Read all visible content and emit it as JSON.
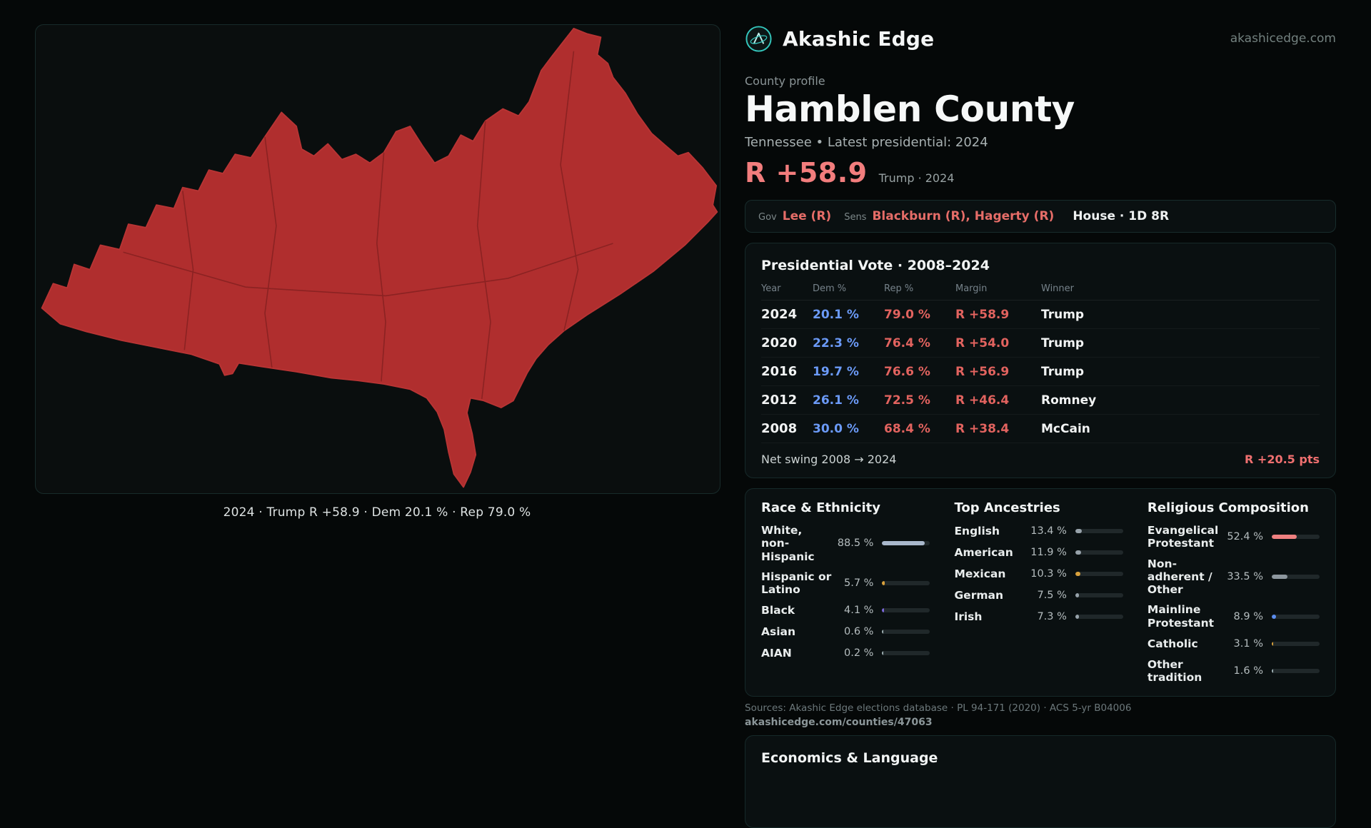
{
  "brand": {
    "name": "Akashic Edge",
    "domain": "akashicedge.com",
    "accent_teal": "#34c7bd"
  },
  "map": {
    "caption": "2024 · Trump R +58.9 · Dem 20.1 % · Rep 79.0 %",
    "fill": "#b02e2e"
  },
  "profile": {
    "eyebrow": "County profile",
    "title": "Hamblen County",
    "subtitle": "Tennessee • Latest presidential: 2024",
    "headline_margin": "R +58.9",
    "headline_context": "Trump · 2024",
    "accent_red": "#e2635f",
    "accent_blue": "#6b9af7"
  },
  "officials": {
    "gov_label": "Gov",
    "gov_value": "Lee (R)",
    "sens_label": "Sens",
    "sens_value": "Blackburn (R), Hagerty (R)",
    "house_value": "House · 1D 8R"
  },
  "presidential": {
    "title": "Presidential Vote · 2008–2024",
    "columns": [
      "Year",
      "Dem %",
      "Rep %",
      "Margin",
      "Winner"
    ],
    "rows": [
      {
        "year": "2024",
        "dem": "20.1 %",
        "rep": "79.0 %",
        "margin": "R +58.9",
        "winner": "Trump"
      },
      {
        "year": "2020",
        "dem": "22.3 %",
        "rep": "76.4 %",
        "margin": "R +54.0",
        "winner": "Trump"
      },
      {
        "year": "2016",
        "dem": "19.7 %",
        "rep": "76.6 %",
        "margin": "R +56.9",
        "winner": "Trump"
      },
      {
        "year": "2012",
        "dem": "26.1 %",
        "rep": "72.5 %",
        "margin": "R +46.4",
        "winner": "Romney"
      },
      {
        "year": "2008",
        "dem": "30.0 %",
        "rep": "68.4 %",
        "margin": "R +38.4",
        "winner": "McCain"
      }
    ],
    "net_swing_label": "Net swing 2008 → 2024",
    "net_swing_value": "R +20.5 pts"
  },
  "chart_data": {
    "type": "table",
    "title": "Presidential Vote · 2008–2024",
    "categories": [
      2024,
      2020,
      2016,
      2012,
      2008
    ],
    "series": [
      {
        "name": "Dem %",
        "values": [
          20.1,
          22.3,
          19.7,
          26.1,
          30.0
        ]
      },
      {
        "name": "Rep %",
        "values": [
          79.0,
          76.4,
          76.6,
          72.5,
          68.4
        ]
      },
      {
        "name": "Rep margin",
        "values": [
          58.9,
          54.0,
          56.9,
          46.4,
          38.4
        ]
      }
    ],
    "winners": [
      "Trump",
      "Trump",
      "Trump",
      "Romney",
      "McCain"
    ],
    "net_swing_pts": 20.5
  },
  "demographics": {
    "race": {
      "title": "Race & Ethnicity",
      "rows": [
        {
          "label": "White, non-Hispanic",
          "value": "88.5 %",
          "pct": 88.5,
          "color": "#a9b8cc"
        },
        {
          "label": "Hispanic or Latino",
          "value": "5.7 %",
          "pct": 5.7,
          "color": "#d9a13c"
        },
        {
          "label": "Black",
          "value": "4.1 %",
          "pct": 4.1,
          "color": "#7b68d9"
        },
        {
          "label": "Asian",
          "value": "0.6 %",
          "pct": 0.6,
          "color": "#9fb0b3"
        },
        {
          "label": "AIAN",
          "value": "0.2 %",
          "pct": 0.2,
          "color": "#9fb0b3"
        }
      ]
    },
    "ancestries": {
      "title": "Top Ancestries",
      "rows": [
        {
          "label": "English",
          "value": "13.4 %",
          "pct": 13.4,
          "color": "#97a2aa"
        },
        {
          "label": "American",
          "value": "11.9 %",
          "pct": 11.9,
          "color": "#97a2aa"
        },
        {
          "label": "Mexican",
          "value": "10.3 %",
          "pct": 10.3,
          "color": "#d9a13c"
        },
        {
          "label": "German",
          "value": "7.5 %",
          "pct": 7.5,
          "color": "#97a2aa"
        },
        {
          "label": "Irish",
          "value": "7.3 %",
          "pct": 7.3,
          "color": "#97a2aa"
        }
      ]
    },
    "religion": {
      "title": "Religious Composition",
      "rows": [
        {
          "label": "Evangelical Protestant",
          "value": "52.4 %",
          "pct": 52.4,
          "color": "#ef8080"
        },
        {
          "label": "Non-adherent / Other",
          "value": "33.5 %",
          "pct": 33.5,
          "color": "#8d979e"
        },
        {
          "label": "Mainline Protestant",
          "value": "8.9 %",
          "pct": 8.9,
          "color": "#5b8def"
        },
        {
          "label": "Catholic",
          "value": "3.1 %",
          "pct": 3.1,
          "color": "#d9a13c"
        },
        {
          "label": "Other tradition",
          "value": "1.6 %",
          "pct": 1.6,
          "color": "#9fb0b3"
        }
      ]
    }
  },
  "sources": {
    "line1": "Sources: Akashic Edge elections database · PL 94-171 (2020) · ACS 5-yr B04006",
    "line2": "akashicedge.com/counties/47063"
  },
  "economics": {
    "title": "Economics & Language"
  }
}
